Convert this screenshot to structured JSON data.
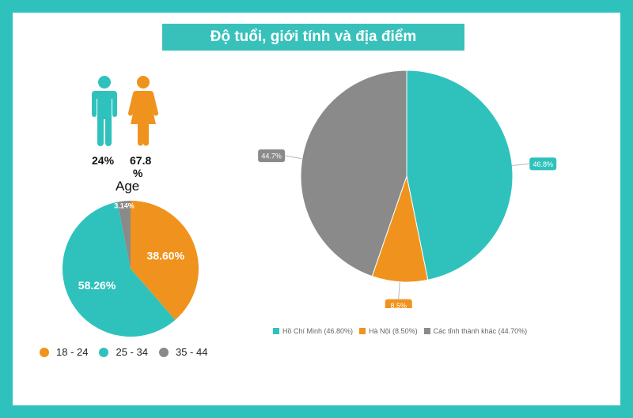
{
  "title": "Độ tuổi, giới tính và địa điểm",
  "colors": {
    "teal": "#2fc2bc",
    "orange": "#f0931e",
    "gray": "#8a8a8a",
    "label_bg": "#2fc2bc"
  },
  "gender": {
    "male_icon": "male-person-icon",
    "female_icon": "female-person-icon",
    "male_pct": "24%",
    "female_pct_line1": "67.8",
    "female_pct_line2": "%"
  },
  "chart_data": [
    {
      "type": "pie",
      "title": "Age",
      "categories": [
        "18 - 24",
        "25 - 34",
        "35 - 44"
      ],
      "values": [
        38.6,
        58.26,
        3.14
      ],
      "labels": [
        "38.60%",
        "58.26%",
        "3.14%"
      ],
      "colors": [
        "#f0931e",
        "#2fc2bc",
        "#8a8a8a"
      ],
      "legend": "bottom"
    },
    {
      "type": "pie",
      "title": "",
      "categories": [
        "Hồ Chí Minh (46.80%)",
        "Hà Nội (8.50%)",
        "Các tỉnh thành khác (44.70%)"
      ],
      "values": [
        46.8,
        8.5,
        44.7
      ],
      "labels": [
        "46.8%",
        "8.5%",
        "44.7%"
      ],
      "colors": [
        "#2fc2bc",
        "#f0931e",
        "#8a8a8a"
      ],
      "legend": "bottom"
    }
  ]
}
